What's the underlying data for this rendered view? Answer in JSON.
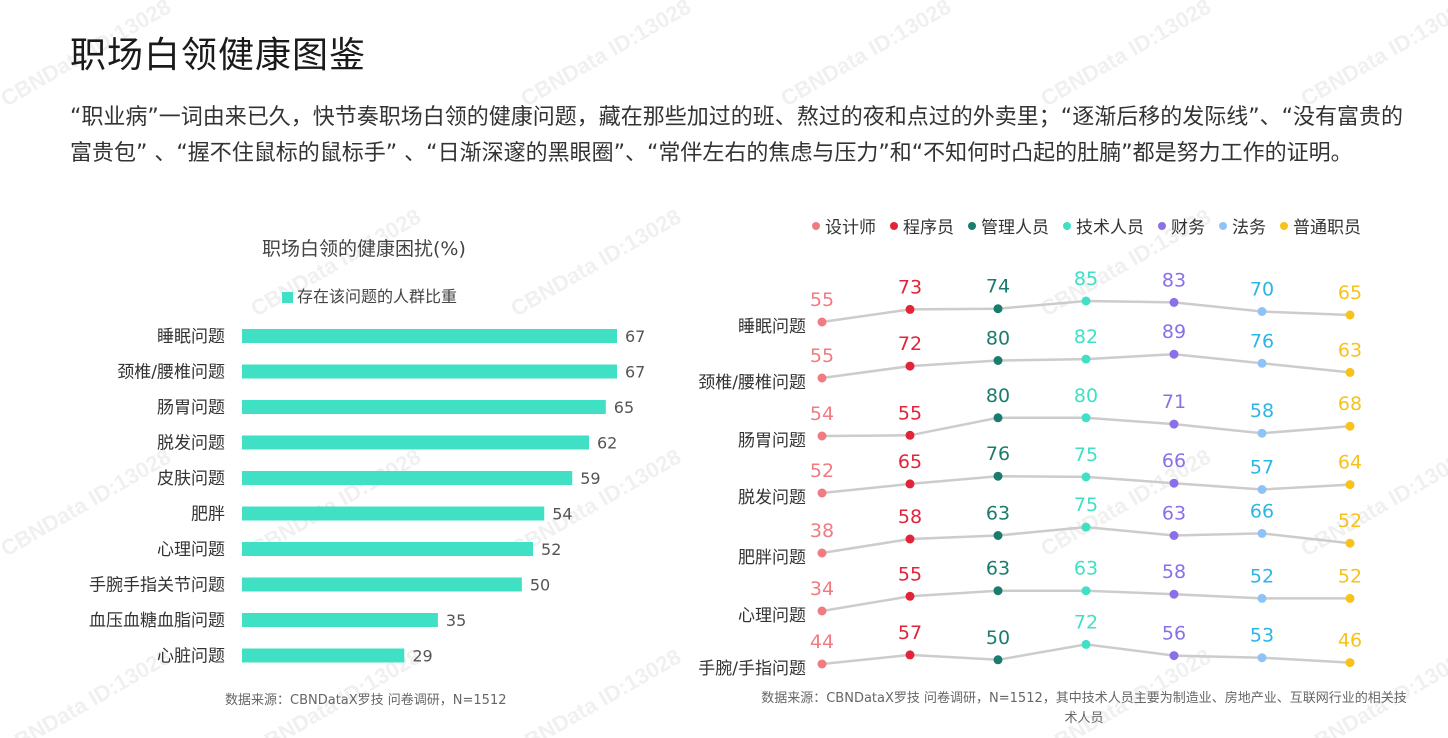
{
  "page": {
    "title": "职场白领健康图鉴",
    "intro": "“职业病”一词由来已久，快节奏职场白领的健康问题，藏在那些加过的班、熬过的夜和点过的外卖里；“逐渐后移的发际线”、“没有富贵的富贵包” 、“握不住鼠标的鼠标手” 、“日渐深邃的黑眼圈”、“常伴左右的焦虑与压力”和“不知何时凸起的肚腩”都是努力工作的证明。",
    "watermark": "CBNData ID:13028",
    "source_left": "数据来源：CBNDataX罗技 问卷调研，N=1512",
    "source_right": "数据来源：CBNDataX罗技 问卷调研，N=1512，其中技术人员主要为制造业、房地产业、互联网行业的相关技术人员"
  },
  "chart_data": [
    {
      "type": "bar",
      "orientation": "horizontal",
      "title": "职场白领的健康困扰(%)",
      "legend": "存在该问题的人群比重",
      "color": "#40E0C4",
      "categories": [
        "睡眠问题",
        "颈椎/腰椎问题",
        "肠胃问题",
        "脱发问题",
        "皮肤问题",
        "肥胖",
        "心理问题",
        "手腕手指关节问题",
        "血压血糖血脂问题",
        "心脏问题"
      ],
      "values": [
        67,
        67,
        65,
        62,
        59,
        54,
        52,
        50,
        35,
        29
      ],
      "xlim": [
        0,
        100
      ]
    },
    {
      "type": "line",
      "categories": [
        "睡眠问题",
        "颈椎/腰椎问题",
        "肠胃问题",
        "脱发问题",
        "肥胖问题",
        "心理问题",
        "手腕/手指问题"
      ],
      "series": [
        {
          "name": "设计师",
          "color": "#F07C82",
          "values": [
            55,
            55,
            54,
            52,
            38,
            34,
            44
          ]
        },
        {
          "name": "程序员",
          "color": "#E2233A",
          "values": [
            73,
            72,
            55,
            65,
            58,
            55,
            57
          ]
        },
        {
          "name": "管理人员",
          "color": "#1B7C6E",
          "values": [
            74,
            80,
            80,
            76,
            63,
            63,
            50
          ]
        },
        {
          "name": "技术人员",
          "color": "#40E0C4",
          "values": [
            85,
            82,
            80,
            75,
            75,
            63,
            72
          ]
        },
        {
          "name": "财务",
          "color": "#8B6FE8",
          "values": [
            83,
            89,
            71,
            66,
            63,
            58,
            56
          ]
        },
        {
          "name": "法务",
          "color": "#8EC4F5",
          "label_color": "#2EB5E8",
          "values": [
            70,
            76,
            58,
            57,
            66,
            52,
            53
          ]
        },
        {
          "name": "普通职员",
          "color": "#F7C21A",
          "values": [
            65,
            63,
            68,
            64,
            52,
            52,
            46
          ]
        }
      ]
    }
  ]
}
